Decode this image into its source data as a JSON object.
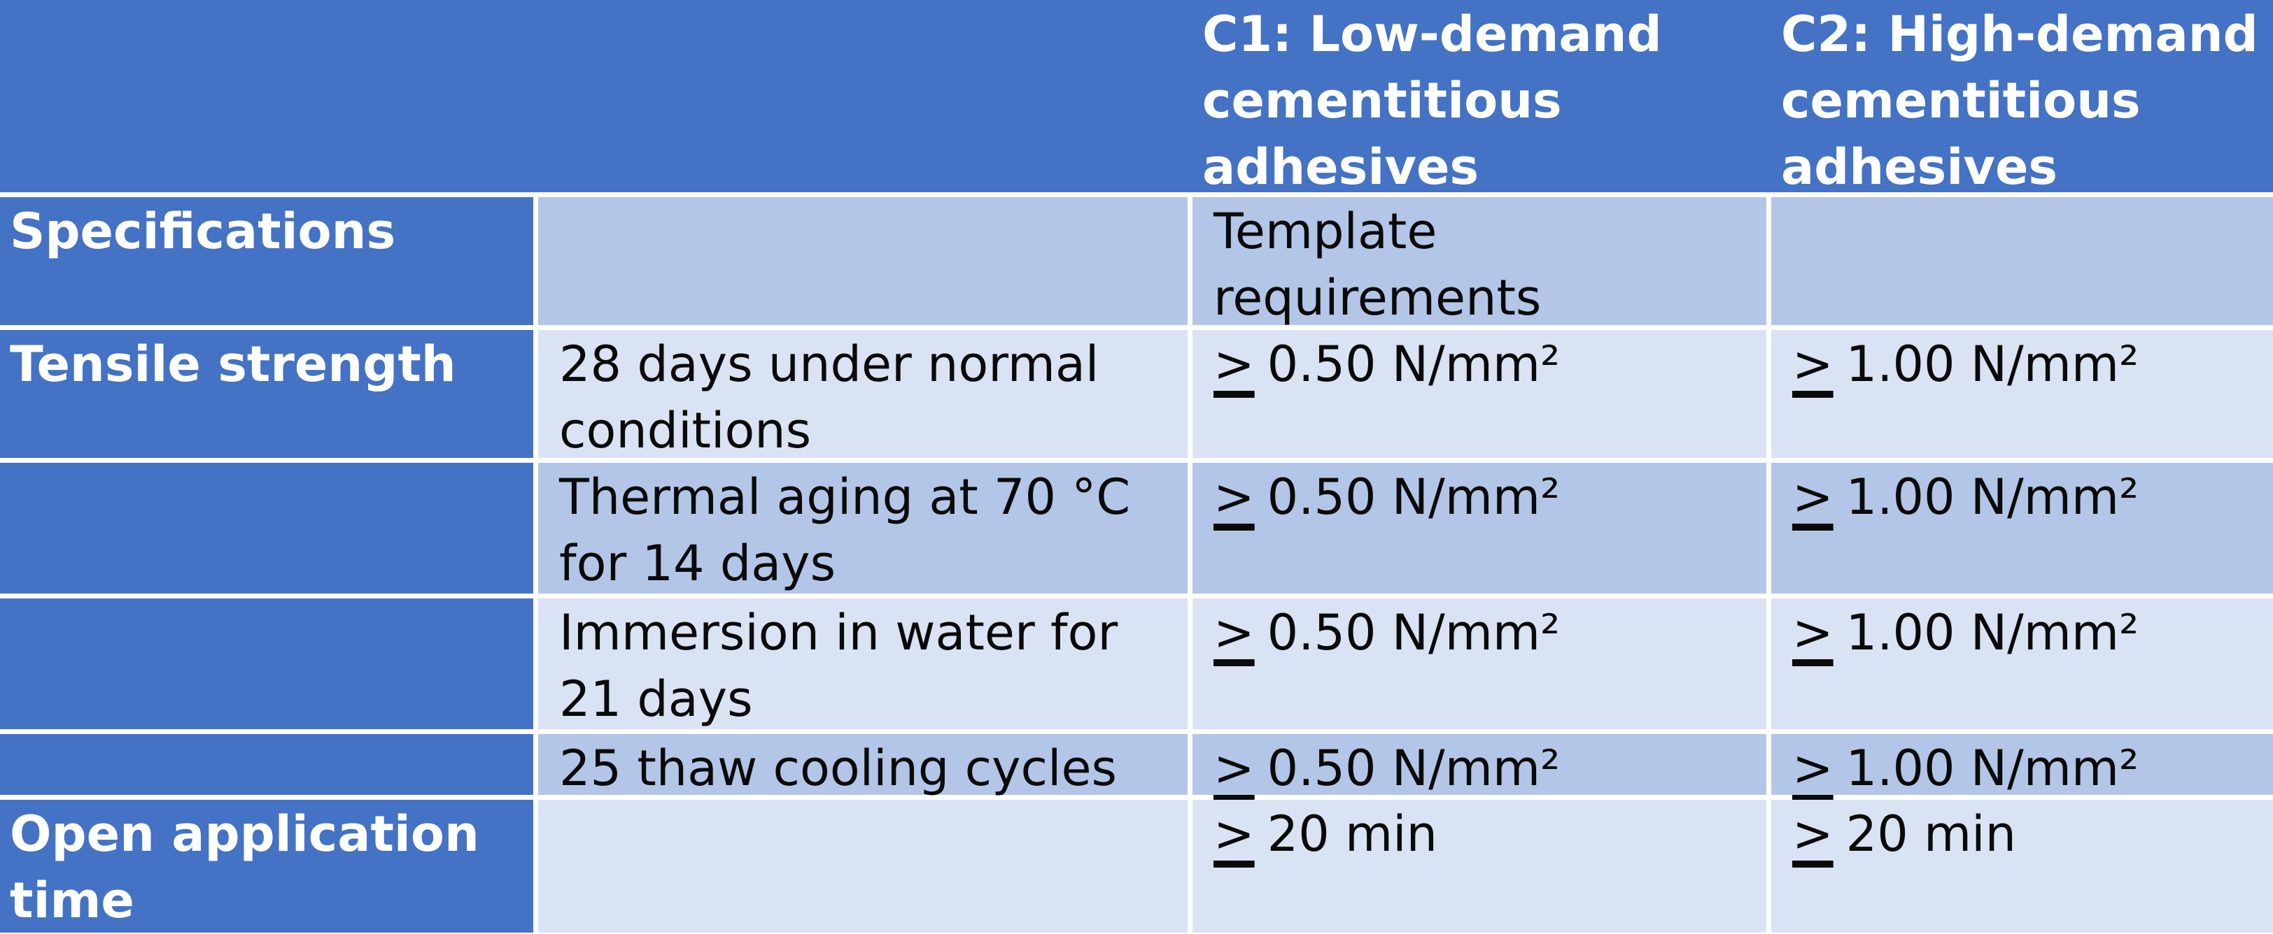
{
  "table": {
    "header_row": {
      "col1": "",
      "col2": "",
      "col3": "C1: Low-demand cementitious adhesives",
      "col4": "C2: High-demand cementitious adhesives"
    },
    "rows": [
      {
        "label": "Specifications",
        "condition": "",
        "c1_geq": "",
        "c1_value": "Template requirements",
        "c2_geq": "",
        "c2_value": ""
      },
      {
        "label": "Tensile strength",
        "condition": "28 days under normal conditions",
        "c1_geq": ">",
        "c1_value": "0.50 N/mm²",
        "c2_geq": ">",
        "c2_value": "1.00 N/mm²"
      },
      {
        "label": "",
        "condition": "Thermal aging at 70 °C for 14 days",
        "c1_geq": ">",
        "c1_value": "0.50 N/mm²",
        "c2_geq": ">",
        "c2_value": "1.00 N/mm²"
      },
      {
        "label": "",
        "condition": "Immersion in water for 21 days",
        "c1_geq": ">",
        "c1_value": "0.50 N/mm²",
        "c2_geq": ">",
        "c2_value": "1.00 N/mm²"
      },
      {
        "label": "",
        "condition": "25 thaw cooling cycles",
        "c1_geq": ">",
        "c1_value": "0.50 N/mm²",
        "c2_geq": ">",
        "c2_value": "1.00 N/mm²"
      },
      {
        "label": "Open application time",
        "condition": "",
        "c1_geq": ">",
        "c1_value": "20 min",
        "c2_geq": ">",
        "c2_value": "20 min"
      }
    ],
    "colors": {
      "header_bg": "#4472C4",
      "label_column_bg": "#4472C4",
      "band_dark": "#B4C6E7",
      "band_light": "#DAE3F3",
      "grid_line": "#FFFFFF",
      "header_text": "#FFFFFF",
      "body_text": "#0A0A0A"
    }
  }
}
